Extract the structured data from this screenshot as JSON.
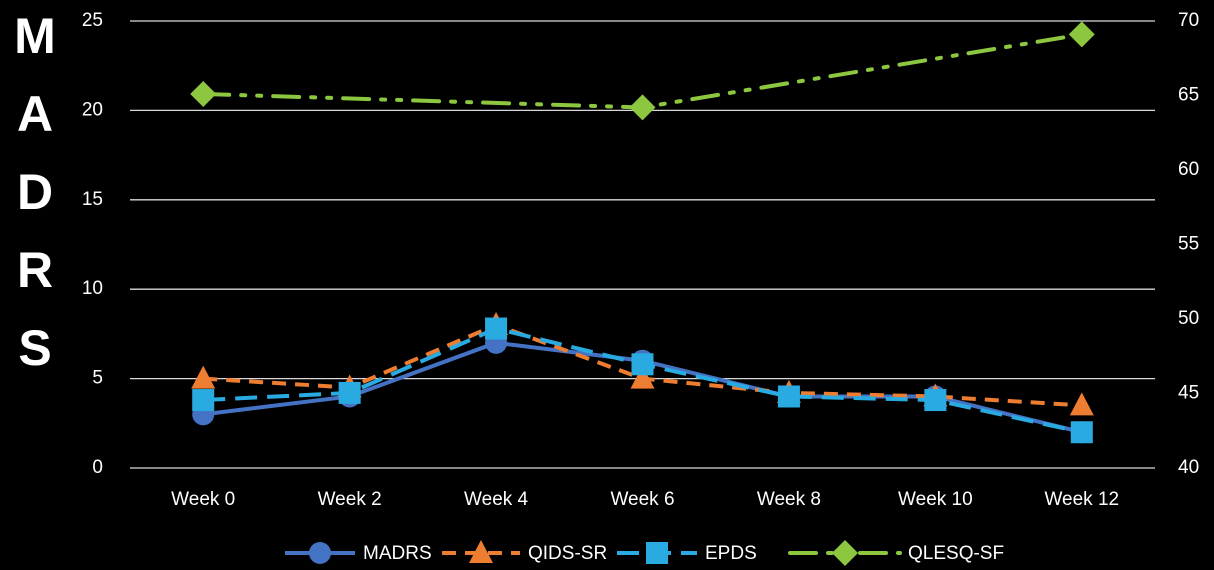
{
  "chart_data": {
    "type": "line",
    "y_label": "MADRS",
    "x": [
      0,
      2,
      4,
      6,
      8,
      10,
      12
    ],
    "xlim": [
      -1,
      13
    ],
    "xticks": [
      {
        "value": 0,
        "label": "Week 0"
      },
      {
        "value": 2,
        "label": "Week 2"
      },
      {
        "value": 4,
        "label": "Week 4"
      },
      {
        "value": 6,
        "label": "Week 6"
      },
      {
        "value": 8,
        "label": "Week 8"
      },
      {
        "value": 10,
        "label": "Week 10"
      },
      {
        "value": 12,
        "label": "Week 12"
      }
    ],
    "ylim": [
      0,
      25
    ],
    "yticks": [
      0,
      5,
      10,
      15,
      20,
      25
    ],
    "y2lim": [
      40,
      70
    ],
    "y2ticks": [
      40,
      45,
      50,
      55,
      60,
      65,
      70
    ],
    "grid": true,
    "legend": "bottom",
    "series": [
      {
        "name": "MADRS",
        "color": "#4472c4",
        "values": [
          3,
          4,
          7,
          6,
          4,
          4,
          2
        ]
      },
      {
        "name": "QIDS-SR",
        "color": "#ed7d31",
        "values": [
          5,
          4.5,
          8,
          5,
          4.2,
          4,
          3.5
        ]
      },
      {
        "name": "EPDS",
        "color": "#29abe2",
        "values": [
          3.8,
          4.2,
          7.8,
          5.8,
          4,
          3.8,
          2
        ]
      },
      {
        "name": "QLESQ-SF",
        "color": "#8dc63f",
        "axis": "y2",
        "x": [
          0,
          6,
          12
        ],
        "values": [
          65.1,
          64.2,
          69.1
        ]
      }
    ]
  }
}
